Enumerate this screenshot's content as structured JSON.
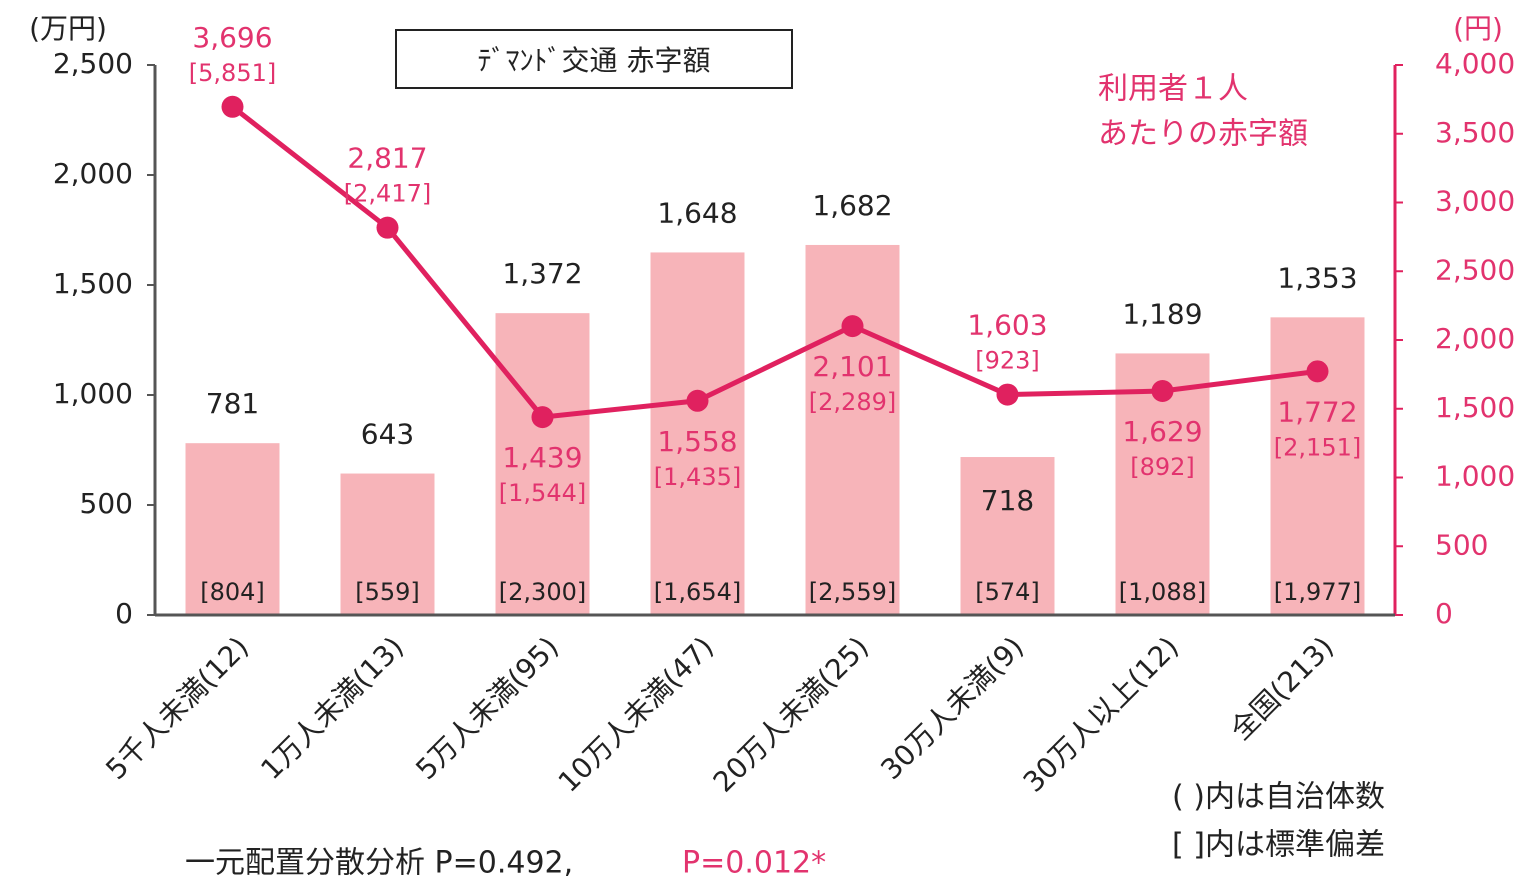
{
  "chart_data": {
    "type": "bar_line",
    "title": "ﾃﾞﾏﾝﾄﾞ交通 赤字額",
    "y_unit": "(万円)",
    "y2_unit": "(円)",
    "categories": [
      "5千人未満(12)",
      "1万人未満(13)",
      "5万人未満(95)",
      "10万人未満(47)",
      "20万人未満(25)",
      "30万人未満(9)",
      "30万人以上(12)",
      "全国(213)"
    ],
    "series": [
      {
        "type": "bar",
        "color": "#f7b4b9",
        "label_color": "#222222",
        "values": [
          781,
          643,
          1372,
          1648,
          1682,
          718,
          1189,
          1353
        ],
        "value_labels": [
          "781",
          "643",
          "1,372",
          "1,648",
          "1,682",
          "718",
          "1,189",
          "1,353"
        ],
        "sd_labels": [
          "[804]",
          "[559]",
          "[2,300]",
          "[1,654]",
          "[2,559]",
          "[574]",
          "[1,088]",
          "[1,977]"
        ]
      },
      {
        "type": "line",
        "axis": "y2",
        "color": "#e0215f",
        "name_lines": [
          "利用者１人",
          "あたりの赤字額"
        ],
        "values": [
          3696,
          2817,
          1439,
          1558,
          2101,
          1603,
          1629,
          1772
        ],
        "value_labels": [
          "3,696",
          "2,817",
          "1,439",
          "1,558",
          "2,101",
          "1,603",
          "1,629",
          "1,772"
        ],
        "sd_labels": [
          "[5,851]",
          "[2,417]",
          "[1,544]",
          "[1,435]",
          "[2,289]",
          "[923]",
          "[892]",
          "[2,151]"
        ]
      }
    ],
    "ylim": [
      0,
      2500
    ],
    "yticks": [
      0,
      500,
      {
        "value": 1000,
        "label": "1,000"
      },
      {
        "value": 1500,
        "label": "1,500"
      },
      {
        "value": 2000,
        "label": "2,000"
      },
      {
        "value": 2500,
        "label": "2,500"
      }
    ],
    "y2lim": [
      0,
      4000
    ],
    "y2ticks": [
      0,
      500,
      {
        "value": 1000,
        "label": "1,000"
      },
      {
        "value": 1500,
        "label": "1,500"
      },
      {
        "value": 2000,
        "label": "2,000"
      },
      {
        "value": 2500,
        "label": "2,500"
      },
      {
        "value": 3000,
        "label": "3,000"
      },
      {
        "value": 3500,
        "label": "3,500"
      },
      {
        "value": 4000,
        "label": "4,000"
      }
    ],
    "notes": [
      "( )内は自治体数",
      "[ ]内は標準偏差"
    ],
    "footer": [
      "一元配置分散分析 P=0.492,",
      "P=0.012*"
    ]
  }
}
